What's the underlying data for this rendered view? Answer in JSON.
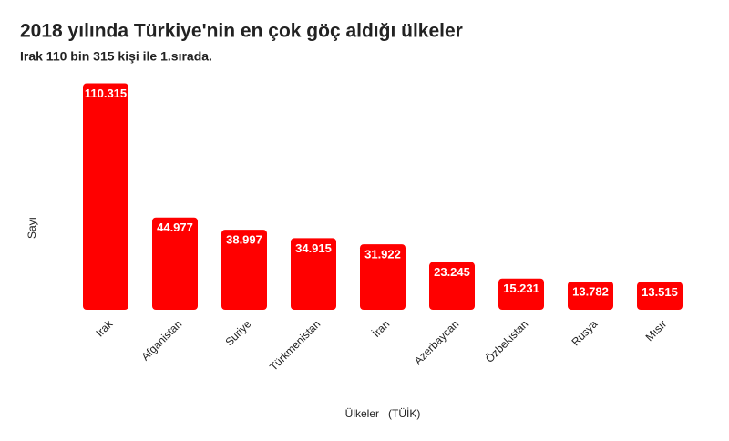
{
  "chart_data": {
    "type": "bar",
    "title": "2018 yılında Türkiye'nin en çok göç aldığı ülkeler",
    "subtitle": "Irak 110 bin 315 kişi ile 1.sırada.",
    "ylabel": "Sayı",
    "xlabel": "Ülkeler   (TÜİK)",
    "categories": [
      "Irak",
      "Afganistan",
      "Suriye",
      "Türkmenistan",
      "İran",
      "Azerbaycan",
      "Özbekistan",
      "Rusya",
      "Mısır"
    ],
    "values": [
      110315,
      44977,
      38997,
      34915,
      31922,
      23245,
      15231,
      13782,
      13515
    ],
    "value_labels": [
      "110.315",
      "44.977",
      "38.997",
      "34.915",
      "31.922",
      "23.245",
      "15.231",
      "13.782",
      "13.515"
    ],
    "color": "#ff0000",
    "ylim": [
      0,
      115000
    ]
  }
}
